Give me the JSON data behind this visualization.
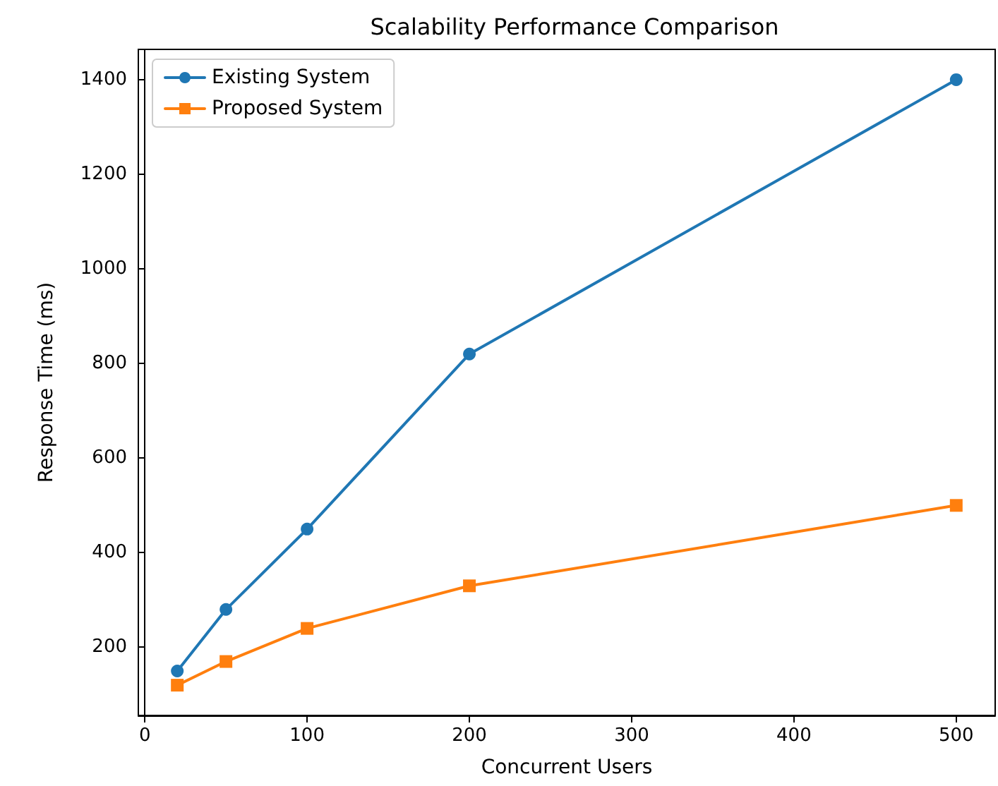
{
  "chart_data": {
    "type": "line",
    "title": "Scalability Performance Comparison",
    "xlabel": "Concurrent Users",
    "ylabel": "Response Time (ms)",
    "x": [
      20,
      50,
      100,
      200,
      500
    ],
    "series": [
      {
        "name": "Existing System",
        "color": "#1f77b4",
        "marker": "circle",
        "values": [
          150,
          280,
          450,
          820,
          1400
        ]
      },
      {
        "name": "Proposed System",
        "color": "#ff7f0e",
        "marker": "square",
        "values": [
          120,
          170,
          240,
          330,
          500
        ]
      }
    ],
    "xlim": [
      -4,
      524
    ],
    "xticks": [
      0,
      100,
      200,
      300,
      400,
      500
    ],
    "ylim": [
      56,
      1464
    ],
    "yticks": [
      200,
      400,
      600,
      800,
      1000,
      1200,
      1400
    ],
    "legend": "top left",
    "line_style": "solid"
  }
}
